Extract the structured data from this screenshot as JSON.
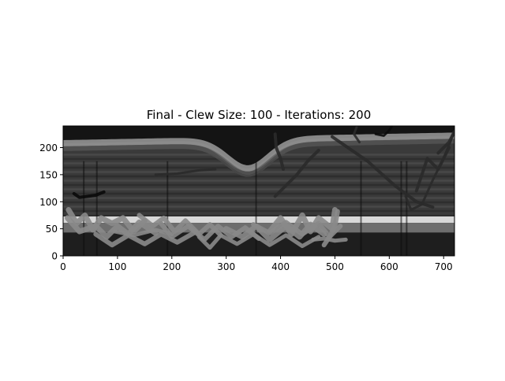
{
  "chart_data": {
    "type": "heatmap",
    "title": "Final - Clew Size: 100 - Iterations: 200",
    "xlabel": "",
    "ylabel": "",
    "xlim": [
      0,
      720
    ],
    "ylim": [
      0,
      240
    ],
    "x_ticks": [
      0,
      100,
      200,
      300,
      400,
      500,
      600,
      700
    ],
    "y_ticks": [
      0,
      50,
      100,
      150,
      200
    ],
    "colormap": "grayscale",
    "grid": false,
    "legend": "none",
    "image_content": "grayscale retinal OCT scan with hand-drawn gray and dark brush strokes overlaid",
    "layers": [
      {
        "role": "dark background above retina",
        "color": "#141414"
      },
      {
        "role": "upper bright band",
        "color": "#9a9a9a",
        "y_left": 208,
        "y_dip": 155,
        "y_right": 222
      },
      {
        "role": "mid textured tissue",
        "color": "#3a3a3a"
      },
      {
        "role": "lower bright band",
        "color": "#d8d8d8",
        "y": 65
      },
      {
        "role": "dark lower region",
        "color": "#1e1e1e"
      }
    ],
    "stroke_colors": [
      "#8a8a8a",
      "#2a2a2a",
      "#0a0a0a"
    ]
  }
}
